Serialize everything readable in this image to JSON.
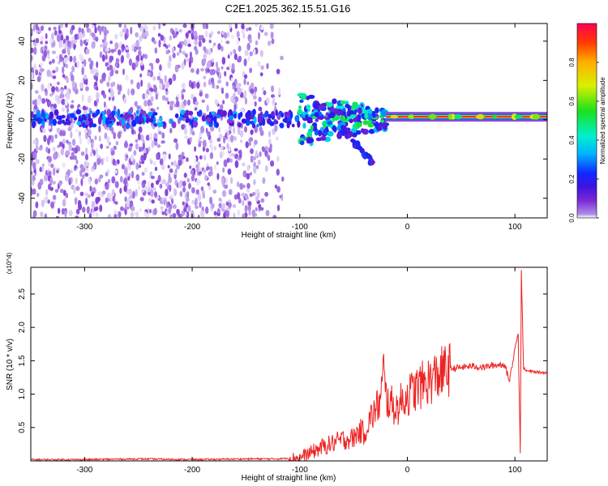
{
  "title": "C2E1.2025.362.15.51.G16",
  "chart_data": [
    {
      "type": "heatmap",
      "xlabel": "Height of straight line (km)",
      "ylabel": "Frequency (Hz)",
      "xlim": [
        -350,
        130
      ],
      "ylim": [
        -50,
        49
      ],
      "xticks": [
        -300,
        -200,
        -100,
        0,
        100
      ],
      "yticks": [
        -40,
        -20,
        0,
        20,
        40
      ],
      "grid": false,
      "colorbar": {
        "label": "Normalized spectral amplitude",
        "range": [
          0,
          1
        ],
        "ticks": [
          0.0,
          0.2,
          0.4,
          0.6,
          0.8
        ],
        "colormap": [
          "#ffffff",
          "#ad8be6",
          "#7a28d6",
          "#3f14e0",
          "#1028ff",
          "#00b4ff",
          "#00f0d0",
          "#1de01d",
          "#d8f000",
          "#ffb000",
          "#ff3c00",
          "#ff0055"
        ]
      },
      "features": [
        {
          "x_range": [
            -350,
            -115
          ],
          "freq_range": [
            -50,
            49
          ],
          "amplitude": 0.12,
          "pattern": "diffuse noise"
        },
        {
          "x_range": [
            -350,
            -100
          ],
          "freq_range": [
            -3,
            4
          ],
          "amplitude": 0.3,
          "pattern": "band of blobs near 0 Hz"
        },
        {
          "x_range": [
            -100,
            -20
          ],
          "freq_center": 0,
          "amplitude": 0.45,
          "pattern": "blob cluster"
        },
        {
          "x_range": [
            -60,
            -32
          ],
          "freq_range": [
            -22,
            -5
          ],
          "amplitude": 0.3,
          "pattern": "descending streak"
        },
        {
          "x_range": [
            -20,
            130
          ],
          "freq_center": 1,
          "amplitude": 0.95,
          "pattern": "steady line near 1-2 Hz"
        }
      ]
    },
    {
      "type": "line",
      "xlabel": "Height of straight line (km)",
      "ylabel": "SNR (10 * v/v)",
      "y_multiplier": "(x10^4)",
      "xlim": [
        -350,
        130
      ],
      "ylim": [
        0,
        2.9
      ],
      "xticks": [
        -300,
        -200,
        -100,
        0,
        100
      ],
      "yticks": [
        0.5,
        1.0,
        1.5,
        2.0,
        2.5
      ],
      "grid": false,
      "series": [
        {
          "color": "#ee2222",
          "x": [
            -350,
            -300,
            -250,
            -200,
            -150,
            -120,
            -100,
            -90,
            -80,
            -70,
            -60,
            -50,
            -45,
            -40,
            -35,
            -30,
            -25,
            -22,
            -20,
            -15,
            -10,
            -5,
            0,
            10,
            20,
            30,
            40,
            50,
            60,
            70,
            80,
            90,
            95,
            100,
            103,
            105,
            106,
            108,
            110,
            120,
            130
          ],
          "values": [
            0.02,
            0.02,
            0.03,
            0.02,
            0.03,
            0.03,
            0.05,
            0.12,
            0.2,
            0.26,
            0.32,
            0.34,
            0.45,
            0.42,
            0.62,
            0.75,
            0.9,
            1.35,
            0.95,
            0.85,
            0.78,
            0.9,
            0.98,
            1.1,
            1.2,
            1.3,
            1.38,
            1.4,
            1.42,
            1.4,
            1.43,
            1.45,
            1.2,
            1.7,
            1.9,
            0.1,
            2.85,
            1.4,
            1.35,
            1.33,
            1.32
          ]
        }
      ]
    }
  ]
}
